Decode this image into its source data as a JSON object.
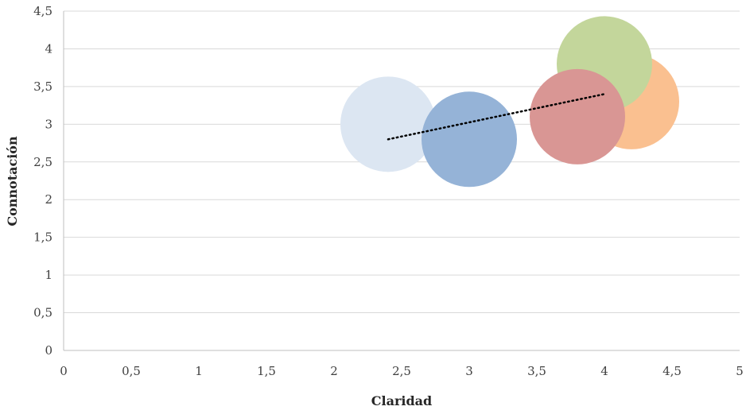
{
  "chart_data": {
    "type": "bubble",
    "xlabel": "Claridad",
    "ylabel": "Connotación",
    "xlim": [
      0,
      5
    ],
    "ylim": [
      0,
      4.5
    ],
    "x_ticks": [
      "0",
      "0,5",
      "1",
      "1,5",
      "2",
      "2,5",
      "3",
      "3,5",
      "4",
      "4,5",
      "5"
    ],
    "y_ticks": [
      "0",
      "0,5",
      "1",
      "1,5",
      "2",
      "2,5",
      "3",
      "3,5",
      "4",
      "4,5"
    ],
    "grid": "horizontal",
    "points": [
      {
        "x": 2.4,
        "y": 3.0,
        "color": "#dce6f2"
      },
      {
        "x": 3.0,
        "y": 2.8,
        "color": "#95b3d7"
      },
      {
        "x": 4.2,
        "y": 3.3,
        "color": "#fac090"
      },
      {
        "x": 4.0,
        "y": 3.8,
        "color": "#c3d69b"
      },
      {
        "x": 3.8,
        "y": 3.1,
        "color": "#d99694"
      }
    ],
    "trendline": {
      "style": "dotted",
      "color": "#000000",
      "x": [
        2.4,
        4.0
      ],
      "y": [
        2.8,
        3.4
      ]
    }
  }
}
